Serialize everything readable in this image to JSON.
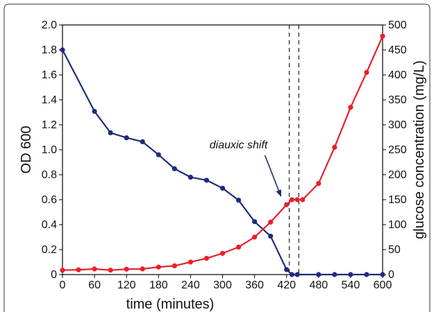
{
  "chart_data": {
    "type": "line",
    "xlabel": "time (minutes)",
    "ylabel_left": "OD 600",
    "ylabel_right": "glucose concentration (mg/L)",
    "xlim": [
      0,
      600
    ],
    "ylim_left": [
      0,
      2.0
    ],
    "ylim_right": [
      0,
      500
    ],
    "x_ticks": [
      0,
      60,
      120,
      180,
      240,
      300,
      360,
      420,
      480,
      540,
      600
    ],
    "y_left_ticks": [
      "0",
      "0.2",
      "0.4",
      "0.6",
      "0.8",
      "1.0",
      "1.2",
      "1.4",
      "1.6",
      "1.8",
      "2.0"
    ],
    "y_right_ticks": [
      0,
      50,
      100,
      150,
      200,
      250,
      300,
      350,
      400,
      450,
      500
    ],
    "grid": false,
    "series": [
      {
        "axis": "right",
        "color": "#1f2a7a",
        "x": [
          0,
          60,
          90,
          120,
          150,
          180,
          210,
          240,
          270,
          300,
          330,
          360,
          390,
          420,
          430,
          440,
          480,
          510,
          540,
          570,
          600
        ],
        "y": [
          450,
          327,
          284,
          274,
          266,
          240,
          212,
          195,
          189,
          173,
          149,
          106,
          77,
          10,
          0,
          0,
          0,
          0,
          0,
          0,
          0
        ]
      },
      {
        "axis": "left",
        "color": "#e8202a",
        "x": [
          0,
          30,
          60,
          90,
          120,
          150,
          180,
          210,
          240,
          270,
          300,
          330,
          360,
          390,
          420,
          430,
          440,
          450,
          480,
          510,
          540,
          570,
          600
        ],
        "y": [
          0.035,
          0.038,
          0.045,
          0.035,
          0.043,
          0.045,
          0.06,
          0.07,
          0.1,
          0.13,
          0.17,
          0.22,
          0.3,
          0.42,
          0.56,
          0.6,
          0.6,
          0.6,
          0.73,
          1.02,
          1.34,
          1.62,
          1.91
        ]
      }
    ],
    "annotations": [
      {
        "text": "diauxic shift",
        "x": 330,
        "y_right": 250,
        "arrow_to_x": 425,
        "arrow_to_y": 0.6
      }
    ],
    "reference_lines": [
      {
        "x": 425,
        "style": "dashed"
      },
      {
        "x": 443,
        "style": "dashed"
      }
    ]
  }
}
